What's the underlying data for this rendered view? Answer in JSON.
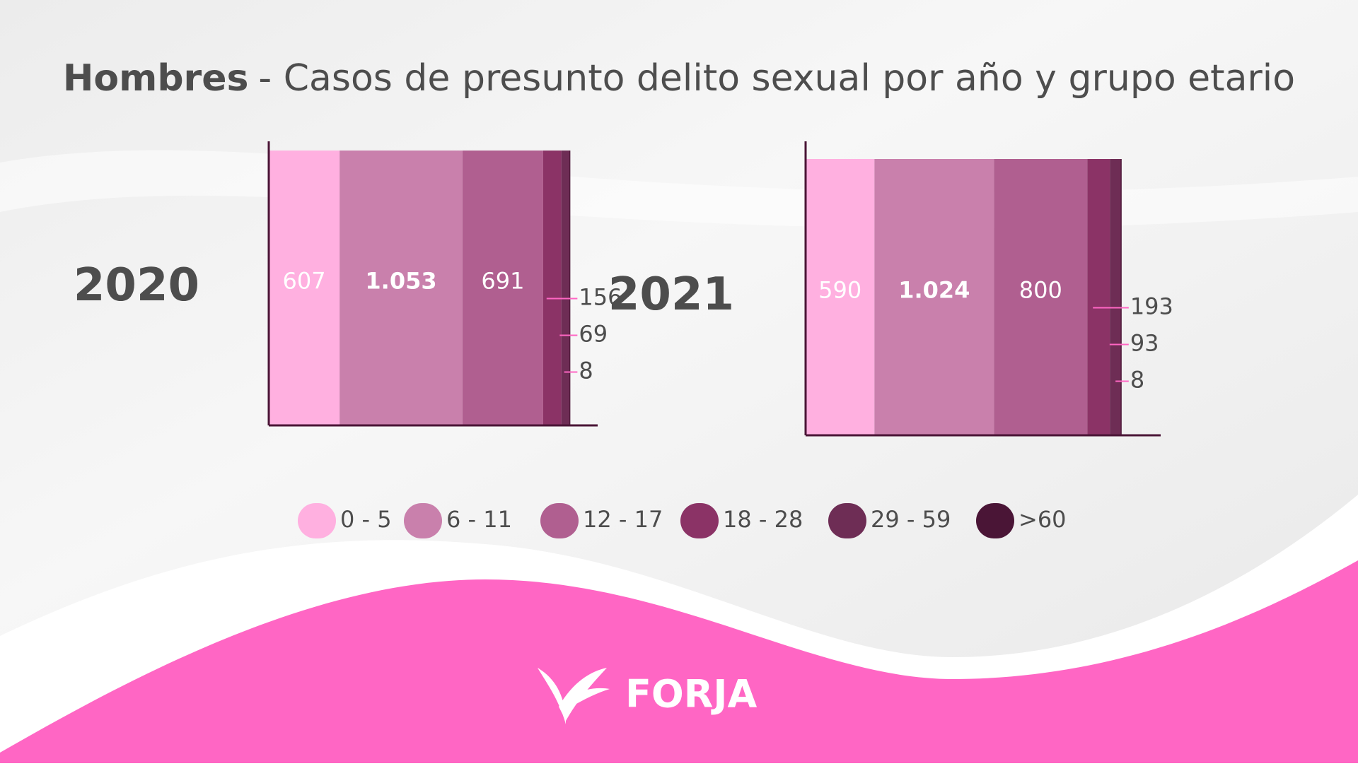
{
  "chart_data": {
    "type": "stacked-hbar",
    "title": {
      "emphasis": "Hombres",
      "text": "- Casos de presunto delito sexual por año y grupo etario"
    },
    "categories": [
      "2020",
      "2021"
    ],
    "series": [
      {
        "name": "0 - 5",
        "color": "#ffb0e0",
        "values": [
          607,
          590
        ]
      },
      {
        "name": "6 - 11",
        "color": "#c980ac",
        "values": [
          1053,
          1024
        ],
        "value_labels": [
          "1.053",
          "1.024"
        ]
      },
      {
        "name": "12 - 17",
        "color": "#b05f90",
        "values": [
          691,
          800
        ]
      },
      {
        "name": "18 - 28",
        "color": "#8b3366",
        "values": [
          156,
          193
        ]
      },
      {
        "name": "29 - 59",
        "color": "#6e2d55",
        "values": [
          69,
          93
        ]
      },
      {
        "name": ">60",
        "color": "#4a1536",
        "values": [
          8,
          8
        ]
      }
    ]
  },
  "logo": "FORJA"
}
